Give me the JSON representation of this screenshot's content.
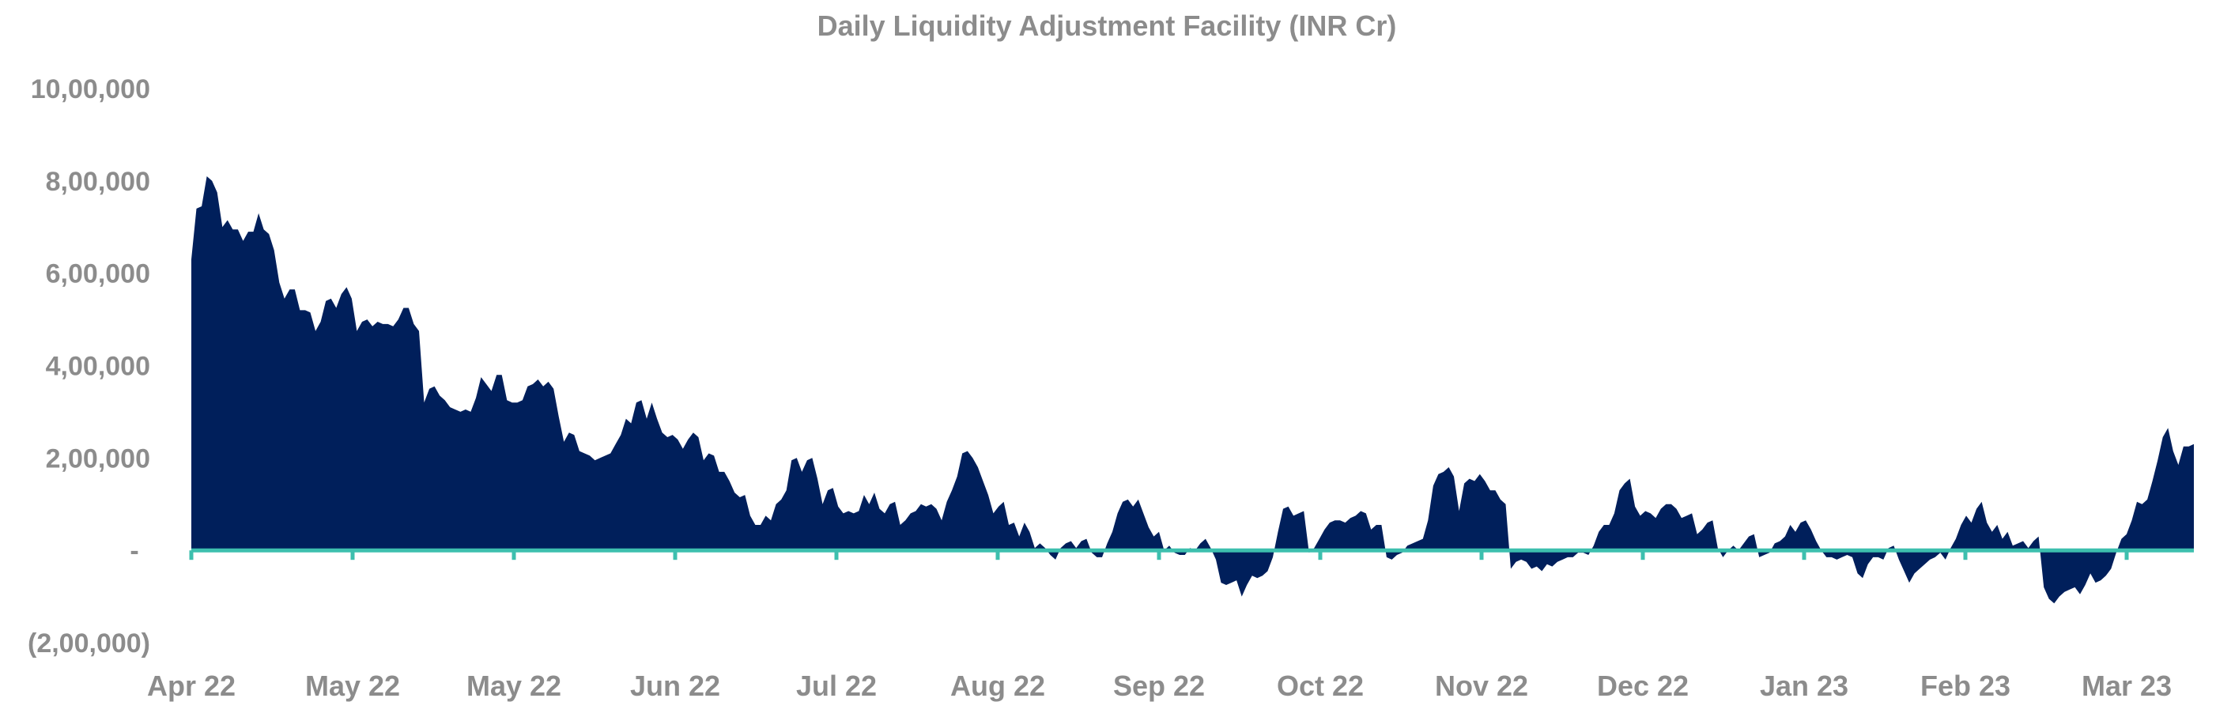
{
  "chart_data": {
    "type": "area",
    "title": "Daily Liquidity Adjustment Facility (INR Cr)",
    "xlabel": "",
    "ylabel": "",
    "ylim": [
      -200000,
      1000000
    ],
    "y_ticks": [
      {
        "value": 1000000,
        "label": "10,00,000"
      },
      {
        "value": 800000,
        "label": "8,00,000"
      },
      {
        "value": 600000,
        "label": "6,00,000"
      },
      {
        "value": 400000,
        "label": "4,00,000"
      },
      {
        "value": 200000,
        "label": "2,00,000"
      },
      {
        "value": 0,
        "label": "-"
      },
      {
        "value": -200000,
        "label": "(2,00,000)"
      }
    ],
    "x_ticks": [
      "Apr 22",
      "May 22",
      "May 22",
      "Jun 22",
      "Jul 22",
      "Aug 22",
      "Sep 22",
      "Oct 22",
      "Nov 22",
      "Dec 22",
      "Jan 23",
      "Feb 23",
      "Mar 23"
    ],
    "grid": false,
    "colors": {
      "area": "#001f5b",
      "axis": "#3dbfae",
      "text": "#8c8c8c"
    },
    "series": [
      {
        "values": [
          630000,
          740000,
          745000,
          810000,
          800000,
          775000,
          700000,
          715000,
          695000,
          695000,
          670000,
          690000,
          690000,
          730000,
          695000,
          685000,
          650000,
          580000,
          545000,
          565000,
          565000,
          520000,
          520000,
          515000,
          475000,
          495000,
          540000,
          545000,
          525000,
          555000,
          570000,
          545000,
          475000,
          495000,
          500000,
          485000,
          495000,
          490000,
          490000,
          485000,
          500000,
          525000,
          525000,
          490000,
          475000,
          320000,
          350000,
          355000,
          335000,
          325000,
          310000,
          305000,
          300000,
          305000,
          300000,
          330000,
          375000,
          360000,
          345000,
          380000,
          380000,
          325000,
          320000,
          320000,
          325000,
          355000,
          360000,
          370000,
          355000,
          365000,
          350000,
          290000,
          235000,
          255000,
          250000,
          215000,
          210000,
          205000,
          195000,
          200000,
          205000,
          210000,
          230000,
          250000,
          285000,
          275000,
          320000,
          325000,
          285000,
          320000,
          285000,
          255000,
          245000,
          250000,
          240000,
          220000,
          240000,
          255000,
          245000,
          195000,
          210000,
          205000,
          170000,
          170000,
          150000,
          125000,
          115000,
          120000,
          75000,
          55000,
          55000,
          75000,
          65000,
          100000,
          110000,
          130000,
          195000,
          200000,
          170000,
          195000,
          200000,
          155000,
          100000,
          130000,
          135000,
          95000,
          80000,
          85000,
          80000,
          85000,
          120000,
          100000,
          125000,
          90000,
          80000,
          100000,
          105000,
          55000,
          65000,
          80000,
          85000,
          100000,
          95000,
          100000,
          90000,
          65000,
          105000,
          130000,
          160000,
          210000,
          215000,
          200000,
          180000,
          150000,
          120000,
          80000,
          95000,
          105000,
          55000,
          60000,
          30000,
          60000,
          40000,
          5000,
          15000,
          5000,
          -10000,
          -20000,
          5000,
          15000,
          20000,
          5000,
          20000,
          25000,
          -5000,
          -15000,
          -15000,
          15000,
          40000,
          80000,
          105000,
          110000,
          95000,
          110000,
          80000,
          50000,
          30000,
          40000,
          0,
          10000,
          -5000,
          -10000,
          -10000,
          5000,
          0,
          15000,
          25000,
          5000,
          -20000,
          -70000,
          -75000,
          -70000,
          -65000,
          -100000,
          -75000,
          -55000,
          -60000,
          -55000,
          -45000,
          -15000,
          40000,
          90000,
          95000,
          75000,
          80000,
          85000,
          -5000,
          5000,
          25000,
          45000,
          60000,
          65000,
          65000,
          60000,
          70000,
          75000,
          85000,
          80000,
          45000,
          55000,
          55000,
          -15000,
          -20000,
          -10000,
          -5000,
          10000,
          15000,
          20000,
          25000,
          65000,
          140000,
          165000,
          170000,
          180000,
          160000,
          85000,
          145000,
          155000,
          150000,
          165000,
          150000,
          130000,
          130000,
          110000,
          100000,
          -40000,
          -25000,
          -20000,
          -25000,
          -40000,
          -35000,
          -45000,
          -30000,
          -35000,
          -25000,
          -20000,
          -15000,
          -15000,
          -5000,
          -5000,
          -10000,
          10000,
          40000,
          55000,
          55000,
          80000,
          130000,
          145000,
          155000,
          95000,
          75000,
          85000,
          80000,
          70000,
          90000,
          100000,
          100000,
          90000,
          70000,
          75000,
          80000,
          35000,
          45000,
          60000,
          65000,
          5000,
          -15000,
          0,
          10000,
          0,
          15000,
          30000,
          35000,
          -15000,
          -10000,
          -5000,
          15000,
          20000,
          30000,
          55000,
          40000,
          60000,
          65000,
          45000,
          20000,
          0,
          -15000,
          -15000,
          -20000,
          -15000,
          -10000,
          -15000,
          -50000,
          -60000,
          -30000,
          -15000,
          -15000,
          -20000,
          5000,
          10000,
          -20000,
          -45000,
          -70000,
          -50000,
          -40000,
          -30000,
          -20000,
          -15000,
          -5000,
          -20000,
          5000,
          25000,
          55000,
          75000,
          60000,
          90000,
          105000,
          60000,
          40000,
          55000,
          25000,
          40000,
          10000,
          15000,
          20000,
          5000,
          20000,
          30000,
          -80000,
          -105000,
          -115000,
          -100000,
          -90000,
          -85000,
          -80000,
          -95000,
          -75000,
          -50000,
          -70000,
          -65000,
          -55000,
          -40000,
          -5000,
          25000,
          35000,
          65000,
          105000,
          100000,
          110000,
          150000,
          195000,
          245000,
          265000,
          215000,
          185000,
          225000,
          225000,
          230000
        ]
      }
    ]
  }
}
